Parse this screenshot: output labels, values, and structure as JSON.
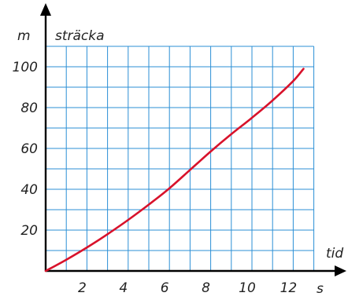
{
  "chart_data": {
    "type": "line",
    "ylabel": "sträcka",
    "yunit": "m",
    "xlabel": "tid",
    "xunit": "s",
    "xlim": [
      0,
      13
    ],
    "ylim": [
      0,
      110
    ],
    "x_ticks": [
      2,
      4,
      6,
      8,
      10,
      12
    ],
    "x_tick_labels": [
      "2",
      "4",
      "6",
      "8",
      "10",
      "12"
    ],
    "y_ticks": [
      20,
      40,
      60,
      80,
      100
    ],
    "y_tick_labels": [
      "20",
      "40",
      "60",
      "80",
      "100"
    ],
    "grid": true,
    "series": [
      {
        "x": [
          0,
          1,
          2,
          3,
          4,
          5,
          6,
          7,
          8,
          9,
          10,
          11,
          12,
          12.5
        ],
        "y": [
          0,
          5.5,
          11.5,
          18,
          25,
          32.5,
          40.5,
          49.5,
          58.5,
          67,
          75,
          83.5,
          93,
          99
        ]
      }
    ]
  },
  "colors": {
    "grid": "#2b8fd6",
    "curve": "#d8122b",
    "axis": "#000000"
  }
}
